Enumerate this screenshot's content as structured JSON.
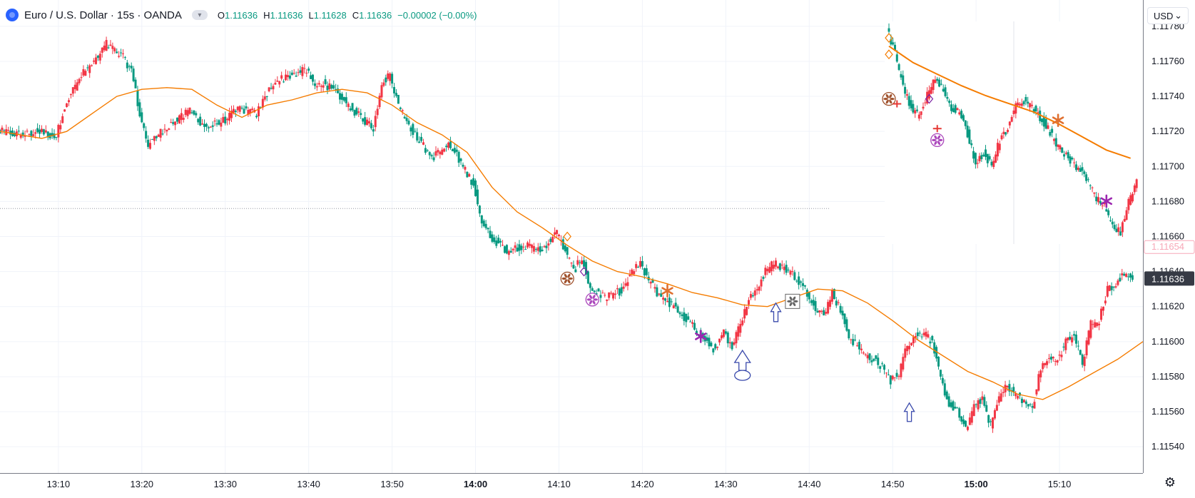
{
  "legend": {
    "title": "Euro / U.S. Dollar · 15s · OANDA",
    "toggle_icon": "chevron-toggle-icon",
    "o_label": "O",
    "o_value": "1.11636",
    "h_label": "H",
    "h_value": "1.11636",
    "l_label": "L",
    "l_value": "1.11628",
    "c_label": "C",
    "c_value": "1.11636",
    "change": "−0.00002 (−0.00%)",
    "up_color": "#089981",
    "down_color": "#f23645"
  },
  "price_scale": {
    "currency": "USD",
    "last_price_label": "1.11636",
    "marker_label": "1.11654",
    "ticks": [
      "1.11780",
      "1.11760",
      "1.11740",
      "1.11720",
      "1.11700",
      "1.11680",
      "1.11660",
      "1.11640",
      "1.11620",
      "1.11600",
      "1.11580",
      "1.11560",
      "1.11540"
    ]
  },
  "time_scale": {
    "ticks": [
      "13:10",
      "13:20",
      "13:30",
      "13:40",
      "13:50",
      "14:00",
      "14:10",
      "14:20",
      "14:30",
      "14:40",
      "14:50",
      "15:00",
      "15:10"
    ],
    "bold_ticks": [
      "14:00",
      "15:00"
    ]
  },
  "chart_data": {
    "type": "candlestick",
    "symbol": "EURUSD",
    "interval": "15s",
    "ylim": [
      1.11525,
      1.11795
    ],
    "x_range": [
      "13:03",
      "15:20"
    ],
    "close_path": [
      [
        "13:03",
        1.1172
      ],
      [
        "13:06",
        1.11718
      ],
      [
        "13:08",
        1.1172
      ],
      [
        "13:10",
        1.11717
      ],
      [
        "13:11",
        1.11735
      ],
      [
        "13:13",
        1.11752
      ],
      [
        "13:15",
        1.11762
      ],
      [
        "13:16",
        1.1177
      ],
      [
        "13:18",
        1.11762
      ],
      [
        "13:19",
        1.11755
      ],
      [
        "13:20",
        1.1173
      ],
      [
        "13:21",
        1.11712
      ],
      [
        "13:23",
        1.11722
      ],
      [
        "13:25",
        1.11728
      ],
      [
        "13:26",
        1.11732
      ],
      [
        "13:28",
        1.11722
      ],
      [
        "13:30",
        1.11726
      ],
      [
        "13:32",
        1.11733
      ],
      [
        "13:34",
        1.1173
      ],
      [
        "13:36",
        1.11748
      ],
      [
        "13:38",
        1.11752
      ],
      [
        "13:40",
        1.11755
      ],
      [
        "13:41",
        1.11745
      ],
      [
        "13:42",
        1.11748
      ],
      [
        "13:44",
        1.1174
      ],
      [
        "13:46",
        1.1173
      ],
      [
        "13:48",
        1.11722
      ],
      [
        "13:49",
        1.11748
      ],
      [
        "13:50",
        1.11752
      ],
      [
        "13:51",
        1.11735
      ],
      [
        "13:53",
        1.11718
      ],
      [
        "13:55",
        1.11705
      ],
      [
        "13:57",
        1.11712
      ],
      [
        "13:58",
        1.11706
      ],
      [
        "14:00",
        1.1169
      ],
      [
        "14:01",
        1.11668
      ],
      [
        "14:02",
        1.1166
      ],
      [
        "14:04",
        1.11652
      ],
      [
        "14:06",
        1.11655
      ],
      [
        "14:08",
        1.11652
      ],
      [
        "14:10",
        1.11662
      ],
      [
        "14:11",
        1.11652
      ],
      [
        "14:12",
        1.1164
      ],
      [
        "14:13",
        1.11648
      ],
      [
        "14:14",
        1.1163
      ],
      [
        "14:16",
        1.11625
      ],
      [
        "14:18",
        1.1163
      ],
      [
        "14:19",
        1.1164
      ],
      [
        "14:20",
        1.11644
      ],
      [
        "14:21",
        1.11635
      ],
      [
        "14:22",
        1.11628
      ],
      [
        "14:24",
        1.1162
      ],
      [
        "14:26",
        1.1161
      ],
      [
        "14:28",
        1.116
      ],
      [
        "14:29",
        1.11595
      ],
      [
        "14:30",
        1.11605
      ],
      [
        "14:31",
        1.11598
      ],
      [
        "14:32",
        1.1161
      ],
      [
        "14:33",
        1.11625
      ],
      [
        "14:34",
        1.1163
      ],
      [
        "14:35",
        1.1164
      ],
      [
        "14:36",
        1.11645
      ],
      [
        "14:38",
        1.1164
      ],
      [
        "14:40",
        1.11628
      ],
      [
        "14:41",
        1.1162
      ],
      [
        "14:42",
        1.11615
      ],
      [
        "14:43",
        1.11628
      ],
      [
        "14:44",
        1.11618
      ],
      [
        "14:45",
        1.11603
      ],
      [
        "14:47",
        1.11592
      ],
      [
        "14:48",
        1.1159
      ],
      [
        "14:49",
        1.11585
      ],
      [
        "14:50",
        1.11578
      ],
      [
        "14:51",
        1.11582
      ],
      [
        "14:52",
        1.11598
      ],
      [
        "14:53",
        1.11604
      ],
      [
        "14:54",
        1.11605
      ],
      [
        "14:55",
        1.116
      ],
      [
        "14:56",
        1.11578
      ],
      [
        "14:57",
        1.11565
      ],
      [
        "14:58",
        1.1156
      ],
      [
        "14:59",
        1.1155
      ],
      [
        "15:00",
        1.11562
      ],
      [
        "15:01",
        1.11568
      ],
      [
        "15:02",
        1.11552
      ],
      [
        "15:03",
        1.11568
      ],
      [
        "15:04",
        1.11575
      ],
      [
        "15:05",
        1.1157
      ],
      [
        "15:06",
        1.11565
      ],
      [
        "15:07",
        1.11562
      ],
      [
        "15:08",
        1.11585
      ],
      [
        "15:09",
        1.1159
      ],
      [
        "15:10",
        1.1159
      ],
      [
        "15:11",
        1.116
      ],
      [
        "15:12",
        1.11603
      ],
      [
        "15:13",
        1.11588
      ],
      [
        "15:14",
        1.1161
      ],
      [
        "15:15",
        1.11612
      ],
      [
        "15:16",
        1.1163
      ],
      [
        "15:17",
        1.11633
      ],
      [
        "15:18",
        1.11638
      ],
      [
        "15:19",
        1.11636
      ]
    ],
    "series": [
      {
        "type": "line",
        "color": "#f57c00",
        "points": [
          [
            "13:03",
            1.1172
          ],
          [
            "13:08",
            1.11716
          ],
          [
            "13:11",
            1.1172
          ],
          [
            "13:14",
            1.1173
          ],
          [
            "13:17",
            1.1174
          ],
          [
            "13:20",
            1.11744
          ],
          [
            "13:23",
            1.11745
          ],
          [
            "13:26",
            1.11744
          ],
          [
            "13:29",
            1.11735
          ],
          [
            "13:32",
            1.11728
          ],
          [
            "13:35",
            1.11735
          ],
          [
            "13:38",
            1.11738
          ],
          [
            "13:41",
            1.11742
          ],
          [
            "13:44",
            1.11744
          ],
          [
            "13:47",
            1.11742
          ],
          [
            "13:50",
            1.11735
          ],
          [
            "13:53",
            1.11725
          ],
          [
            "13:56",
            1.11718
          ],
          [
            "13:59",
            1.11708
          ],
          [
            "14:02",
            1.11688
          ],
          [
            "14:05",
            1.11674
          ],
          [
            "14:08",
            1.11665
          ],
          [
            "14:11",
            1.11655
          ],
          [
            "14:14",
            1.11646
          ],
          [
            "14:17",
            1.1164
          ],
          [
            "14:20",
            1.11637
          ],
          [
            "14:23",
            1.11633
          ],
          [
            "14:26",
            1.11628
          ],
          [
            "14:29",
            1.11625
          ],
          [
            "14:32",
            1.11621
          ],
          [
            "14:35",
            1.1162
          ],
          [
            "14:38",
            1.11625
          ],
          [
            "14:41",
            1.1163
          ],
          [
            "14:44",
            1.11629
          ],
          [
            "14:47",
            1.11622
          ],
          [
            "14:50",
            1.11612
          ],
          [
            "14:53",
            1.11601
          ],
          [
            "14:56",
            1.11592
          ],
          [
            "14:59",
            1.11583
          ],
          [
            "15:02",
            1.11577
          ],
          [
            "15:05",
            1.1157
          ],
          [
            "15:08",
            1.11567
          ],
          [
            "15:11",
            1.11574
          ],
          [
            "15:14",
            1.11582
          ],
          [
            "15:17",
            1.1159
          ],
          [
            "15:20",
            1.116
          ]
        ]
      }
    ],
    "horizontal_lines": [
      {
        "value": 1.11676,
        "style": "dotted",
        "color": "#9598a1"
      }
    ],
    "grid": true,
    "markers": [
      {
        "time": "14:11",
        "price": 1.1166,
        "icon": "diamond-outline-icon",
        "color": "#f57c00"
      },
      {
        "time": "14:11",
        "price": 1.11636,
        "icon": "pinwheel-icon",
        "color": "#a0522d"
      },
      {
        "time": "14:13",
        "price": 1.1164,
        "icon": "diamond-outline-icon",
        "color": "#7b1fa2"
      },
      {
        "time": "14:14",
        "price": 1.11624,
        "icon": "pinwheel-icon",
        "color": "#ab47bc"
      },
      {
        "time": "14:23",
        "price": 1.11629,
        "icon": "asterisk-icon",
        "color": "#e07030"
      },
      {
        "time": "14:27",
        "price": 1.11603,
        "icon": "asterisk-icon",
        "color": "#9c27b0"
      },
      {
        "time": "14:32",
        "price": 1.11595,
        "icon": "large-up-arrow-icon",
        "color": "#3949ab"
      },
      {
        "time": "14:36",
        "price": 1.11622,
        "icon": "up-arrow-icon",
        "color": "#3949ab"
      },
      {
        "time": "14:38",
        "price": 1.11623,
        "icon": "pinwheel-box-icon",
        "color": "#666666"
      },
      {
        "time": "14:52",
        "price": 1.11565,
        "icon": "up-arrow-icon",
        "color": "#3949ab"
      }
    ],
    "inset": {
      "ylim": [
        1.11655,
        1.1179
      ],
      "close_path": [
        [
          "14:47",
          1.11785
        ],
        [
          "14:48",
          1.1177
        ],
        [
          "14:49",
          1.1175
        ],
        [
          "14:50",
          1.11738
        ],
        [
          "14:51",
          1.11732
        ],
        [
          "14:52",
          1.11745
        ],
        [
          "14:53",
          1.11755
        ],
        [
          "14:54",
          1.11748
        ],
        [
          "14:55",
          1.11738
        ],
        [
          "14:56",
          1.11735
        ],
        [
          "14:57",
          1.11722
        ],
        [
          "14:58",
          1.11705
        ],
        [
          "14:59",
          1.1171
        ],
        [
          "15:00",
          1.11702
        ],
        [
          "15:01",
          1.11718
        ],
        [
          "15:02",
          1.11725
        ],
        [
          "15:03",
          1.11738
        ],
        [
          "15:04",
          1.11742
        ],
        [
          "15:05",
          1.11738
        ],
        [
          "15:06",
          1.11732
        ],
        [
          "15:07",
          1.11725
        ],
        [
          "15:08",
          1.11715
        ],
        [
          "15:09",
          1.1171
        ],
        [
          "15:10",
          1.11704
        ],
        [
          "15:11",
          1.117
        ],
        [
          "15:12",
          1.11692
        ],
        [
          "15:13",
          1.11682
        ],
        [
          "15:14",
          1.11678
        ],
        [
          "15:15",
          1.11665
        ],
        [
          "15:16",
          1.11662
        ],
        [
          "15:17",
          1.1168
        ],
        [
          "15:18",
          1.11692
        ]
      ],
      "line": [
        [
          "14:47",
          1.11775
        ],
        [
          "14:50",
          1.11765
        ],
        [
          "14:53",
          1.11758
        ],
        [
          "14:56",
          1.11751
        ],
        [
          "14:59",
          1.11745
        ],
        [
          "15:02",
          1.1174
        ],
        [
          "15:05",
          1.11735
        ],
        [
          "15:08",
          1.11728
        ],
        [
          "15:11",
          1.1172
        ],
        [
          "15:14",
          1.11712
        ],
        [
          "15:17",
          1.11707
        ]
      ],
      "markers": [
        {
          "time": "14:47",
          "price": 1.1178,
          "icon": "diamond-outline-icon",
          "color": "#f57c00"
        },
        {
          "time": "14:47",
          "price": 1.1177,
          "icon": "diamond-outline-icon",
          "color": "#f57c00"
        },
        {
          "time": "14:47",
          "price": 1.11743,
          "icon": "pinwheel-icon",
          "color": "#a0522d"
        },
        {
          "time": "14:48",
          "price": 1.1174,
          "icon": "cross-icon",
          "color": "#e53935"
        },
        {
          "time": "14:52",
          "price": 1.11743,
          "icon": "diamond-outline-icon",
          "color": "#7b1fa2"
        },
        {
          "time": "14:53",
          "price": 1.11725,
          "icon": "cross-icon",
          "color": "#e53935"
        },
        {
          "time": "14:53",
          "price": 1.11718,
          "icon": "pinwheel-icon",
          "color": "#ab47bc"
        },
        {
          "time": "15:08",
          "price": 1.1173,
          "icon": "asterisk-icon",
          "color": "#e07030"
        },
        {
          "time": "15:14",
          "price": 1.11681,
          "icon": "asterisk-icon",
          "color": "#9c27b0"
        }
      ]
    }
  }
}
